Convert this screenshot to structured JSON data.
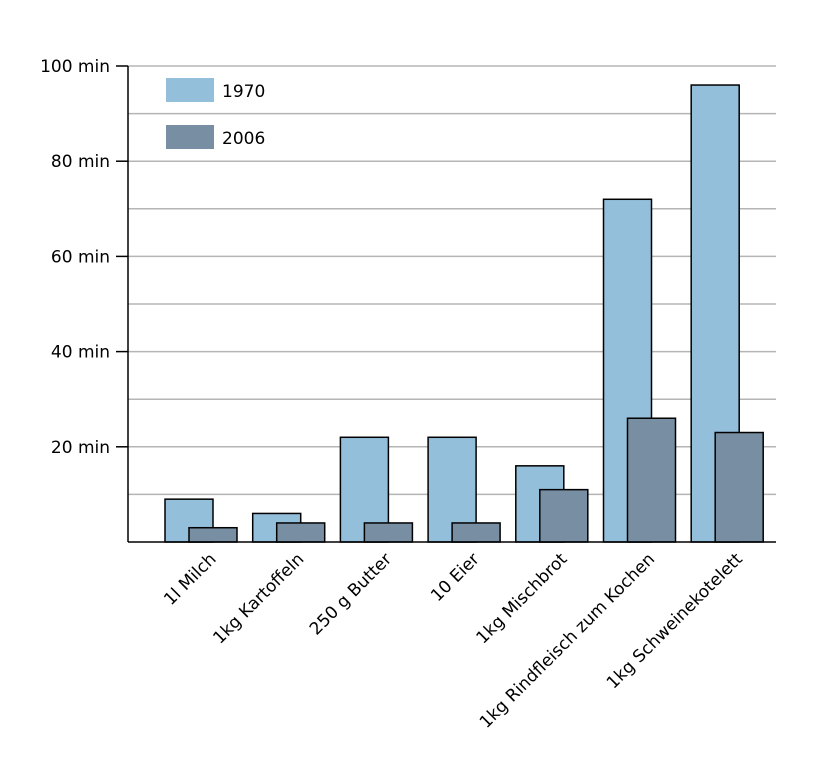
{
  "chart_data": {
    "type": "bar",
    "title": "",
    "xlabel": "",
    "ylabel": "",
    "categories": [
      "1l Milch",
      "1kg Kartoffeln",
      "250 g Butter",
      "10 Eier",
      "1kg Mischbrot",
      "1kg Rindfleisch zum Kochen",
      "1kg Schweinekotelett"
    ],
    "series": [
      {
        "name": "1970",
        "values": [
          9,
          6,
          22,
          22,
          16,
          72,
          96
        ]
      },
      {
        "name": "2006",
        "values": [
          3,
          4,
          4,
          4,
          11,
          26,
          23
        ]
      }
    ],
    "ylim": [
      0,
      100
    ],
    "yticks": [
      {
        "value": 20,
        "label": "20 min"
      },
      {
        "value": 40,
        "label": "40 min"
      },
      {
        "value": 60,
        "label": "60 min"
      },
      {
        "value": 80,
        "label": "80 min"
      },
      {
        "value": 100,
        "label": "100 min"
      }
    ],
    "gridlines": [
      10,
      20,
      30,
      40,
      50,
      60,
      70,
      80,
      90,
      100
    ],
    "grid": true,
    "legend_position": "top-left",
    "colors": {
      "series_1970": "#93bfdb",
      "series_2006": "#788fa3",
      "grid": "#b5b5b5",
      "axis": "#000000"
    }
  }
}
